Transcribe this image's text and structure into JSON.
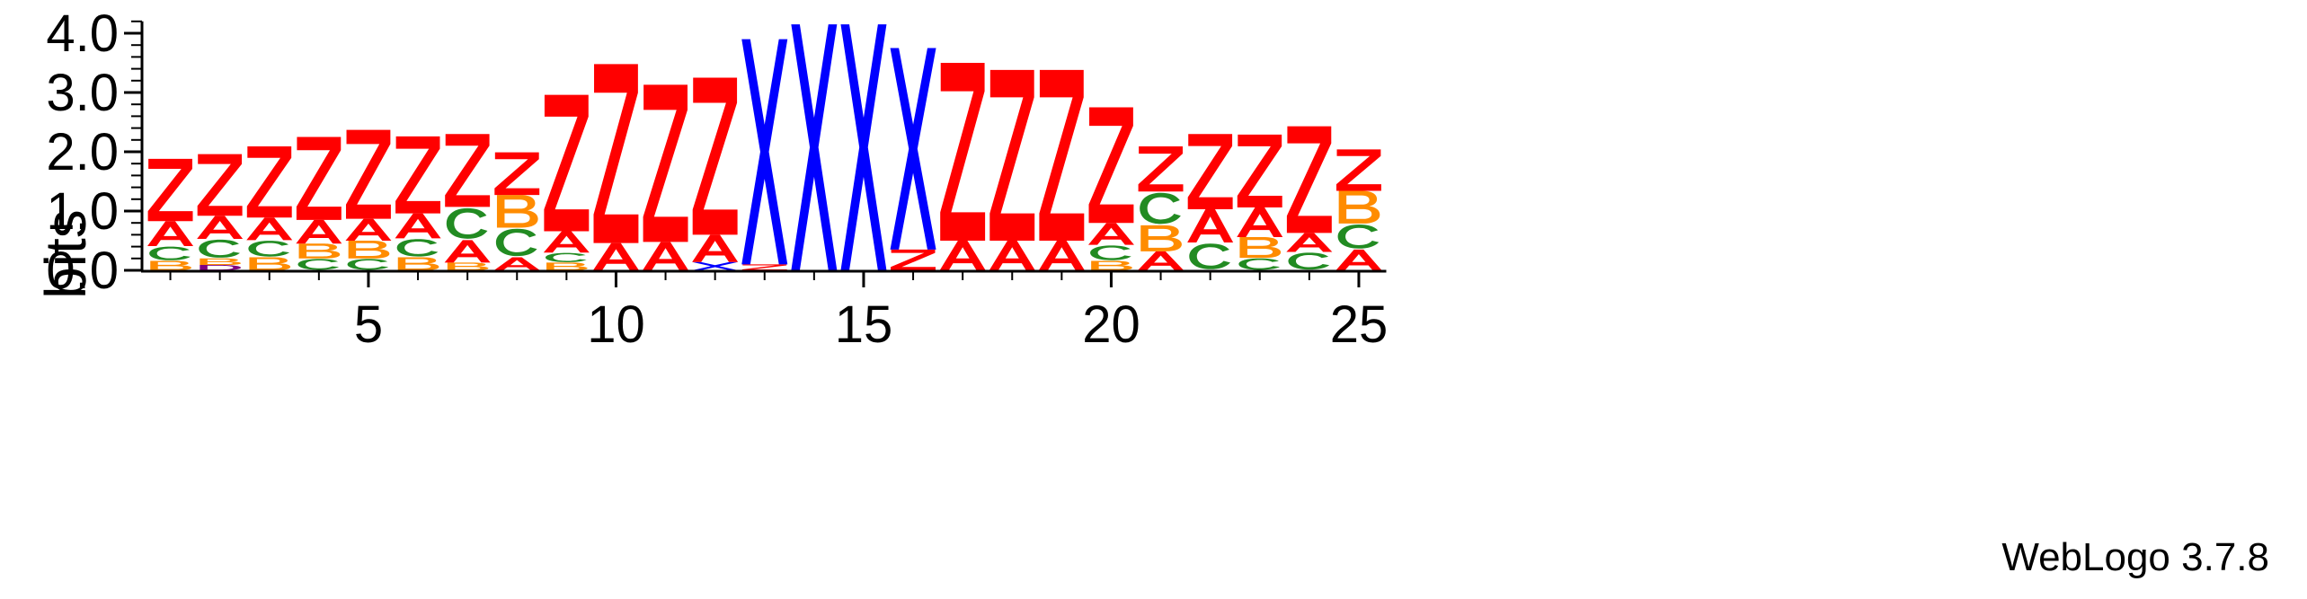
{
  "chart_data": {
    "type": "sequence-logo",
    "title": "",
    "xlabel": "",
    "ylabel": "bits",
    "ylim": [
      0,
      4.2
    ],
    "yticks": [
      "0.0",
      "1.0",
      "2.0",
      "3.0",
      "4.0"
    ],
    "ytick_values": [
      0,
      1,
      2,
      3,
      4
    ],
    "xticks": [
      "5",
      "10",
      "15",
      "20",
      "25"
    ],
    "xtick_values": [
      5,
      10,
      15,
      20,
      25
    ],
    "colors": {
      "Z": "#ff0000",
      "A": "#ff0000",
      "X": "#0000ff",
      "C": "#228b22",
      "B": "#ff8c00",
      "D": "#800080"
    },
    "positions": [
      {
        "pos": 1,
        "stack": [
          [
            "B",
            0.16
          ],
          [
            "C",
            0.25
          ],
          [
            "A",
            0.42
          ],
          [
            "Z",
            1.05
          ]
        ]
      },
      {
        "pos": 2,
        "stack": [
          [
            "D",
            0.09
          ],
          [
            "B",
            0.11
          ],
          [
            "C",
            0.33
          ],
          [
            "A",
            0.39
          ],
          [
            "Z",
            1.04
          ]
        ]
      },
      {
        "pos": 3,
        "stack": [
          [
            "B",
            0.22
          ],
          [
            "C",
            0.29
          ],
          [
            "A",
            0.38
          ],
          [
            "Z",
            1.2
          ]
        ]
      },
      {
        "pos": 4,
        "stack": [
          [
            "C",
            0.2
          ],
          [
            "B",
            0.25
          ],
          [
            "A",
            0.4
          ],
          [
            "Z",
            1.4
          ]
        ]
      },
      {
        "pos": 5,
        "stack": [
          [
            "C",
            0.2
          ],
          [
            "B",
            0.3
          ],
          [
            "A",
            0.37
          ],
          [
            "Z",
            1.5
          ]
        ]
      },
      {
        "pos": 6,
        "stack": [
          [
            "B",
            0.22
          ],
          [
            "C",
            0.32
          ],
          [
            "A",
            0.42
          ],
          [
            "Z",
            1.3
          ]
        ]
      },
      {
        "pos": 7,
        "stack": [
          [
            "B",
            0.13
          ],
          [
            "A",
            0.38
          ],
          [
            "C",
            0.56
          ],
          [
            "Z",
            1.23
          ]
        ]
      },
      {
        "pos": 8,
        "stack": [
          [
            "A",
            0.22
          ],
          [
            "C",
            0.5
          ],
          [
            "B",
            0.55
          ],
          [
            "Z",
            0.72
          ]
        ]
      },
      {
        "pos": 9,
        "stack": [
          [
            "B",
            0.13
          ],
          [
            "C",
            0.17
          ],
          [
            "A",
            0.36
          ],
          [
            "Z",
            2.3
          ]
        ]
      },
      {
        "pos": 10,
        "stack": [
          [
            "A",
            0.46
          ],
          [
            "Z",
            3.02
          ]
        ]
      },
      {
        "pos": 11,
        "stack": [
          [
            "A",
            0.48
          ],
          [
            "Z",
            2.65
          ]
        ]
      },
      {
        "pos": 12,
        "stack": [
          [
            "X",
            0.14
          ],
          [
            "A",
            0.46
          ],
          [
            "Z",
            2.65
          ]
        ]
      },
      {
        "pos": 13,
        "stack": [
          [
            "Z",
            0.1
          ],
          [
            "X",
            3.8
          ]
        ]
      },
      {
        "pos": 14,
        "stack": [
          [
            "X",
            4.15
          ]
        ]
      },
      {
        "pos": 15,
        "stack": [
          [
            "X",
            4.15
          ]
        ]
      },
      {
        "pos": 16,
        "stack": [
          [
            "Z",
            0.35
          ],
          [
            "X",
            3.4
          ]
        ]
      },
      {
        "pos": 17,
        "stack": [
          [
            "A",
            0.5
          ],
          [
            "Z",
            3.0
          ]
        ]
      },
      {
        "pos": 18,
        "stack": [
          [
            "A",
            0.5
          ],
          [
            "Z",
            2.88
          ]
        ]
      },
      {
        "pos": 19,
        "stack": [
          [
            "A",
            0.5
          ],
          [
            "Z",
            2.88
          ]
        ]
      },
      {
        "pos": 20,
        "stack": [
          [
            "B",
            0.16
          ],
          [
            "C",
            0.27
          ],
          [
            "A",
            0.37
          ],
          [
            "Z",
            1.95
          ]
        ]
      },
      {
        "pos": 21,
        "stack": [
          [
            "A",
            0.32
          ],
          [
            "B",
            0.44
          ],
          [
            "C",
            0.57
          ],
          [
            "Z",
            0.76
          ]
        ]
      },
      {
        "pos": 22,
        "stack": [
          [
            "C",
            0.47
          ],
          [
            "A",
            0.56
          ],
          [
            "Z",
            1.27
          ]
        ]
      },
      {
        "pos": 23,
        "stack": [
          [
            "C",
            0.21
          ],
          [
            "B",
            0.35
          ],
          [
            "A",
            0.5
          ],
          [
            "Z",
            1.23
          ]
        ]
      },
      {
        "pos": 24,
        "stack": [
          [
            "C",
            0.31
          ],
          [
            "A",
            0.32
          ],
          [
            "Z",
            1.8
          ]
        ]
      },
      {
        "pos": 25,
        "stack": [
          [
            "A",
            0.35
          ],
          [
            "C",
            0.44
          ],
          [
            "B",
            0.55
          ],
          [
            "Z",
            0.7
          ]
        ]
      }
    ]
  },
  "footer": {
    "credit": "WebLogo 3.7.8"
  }
}
